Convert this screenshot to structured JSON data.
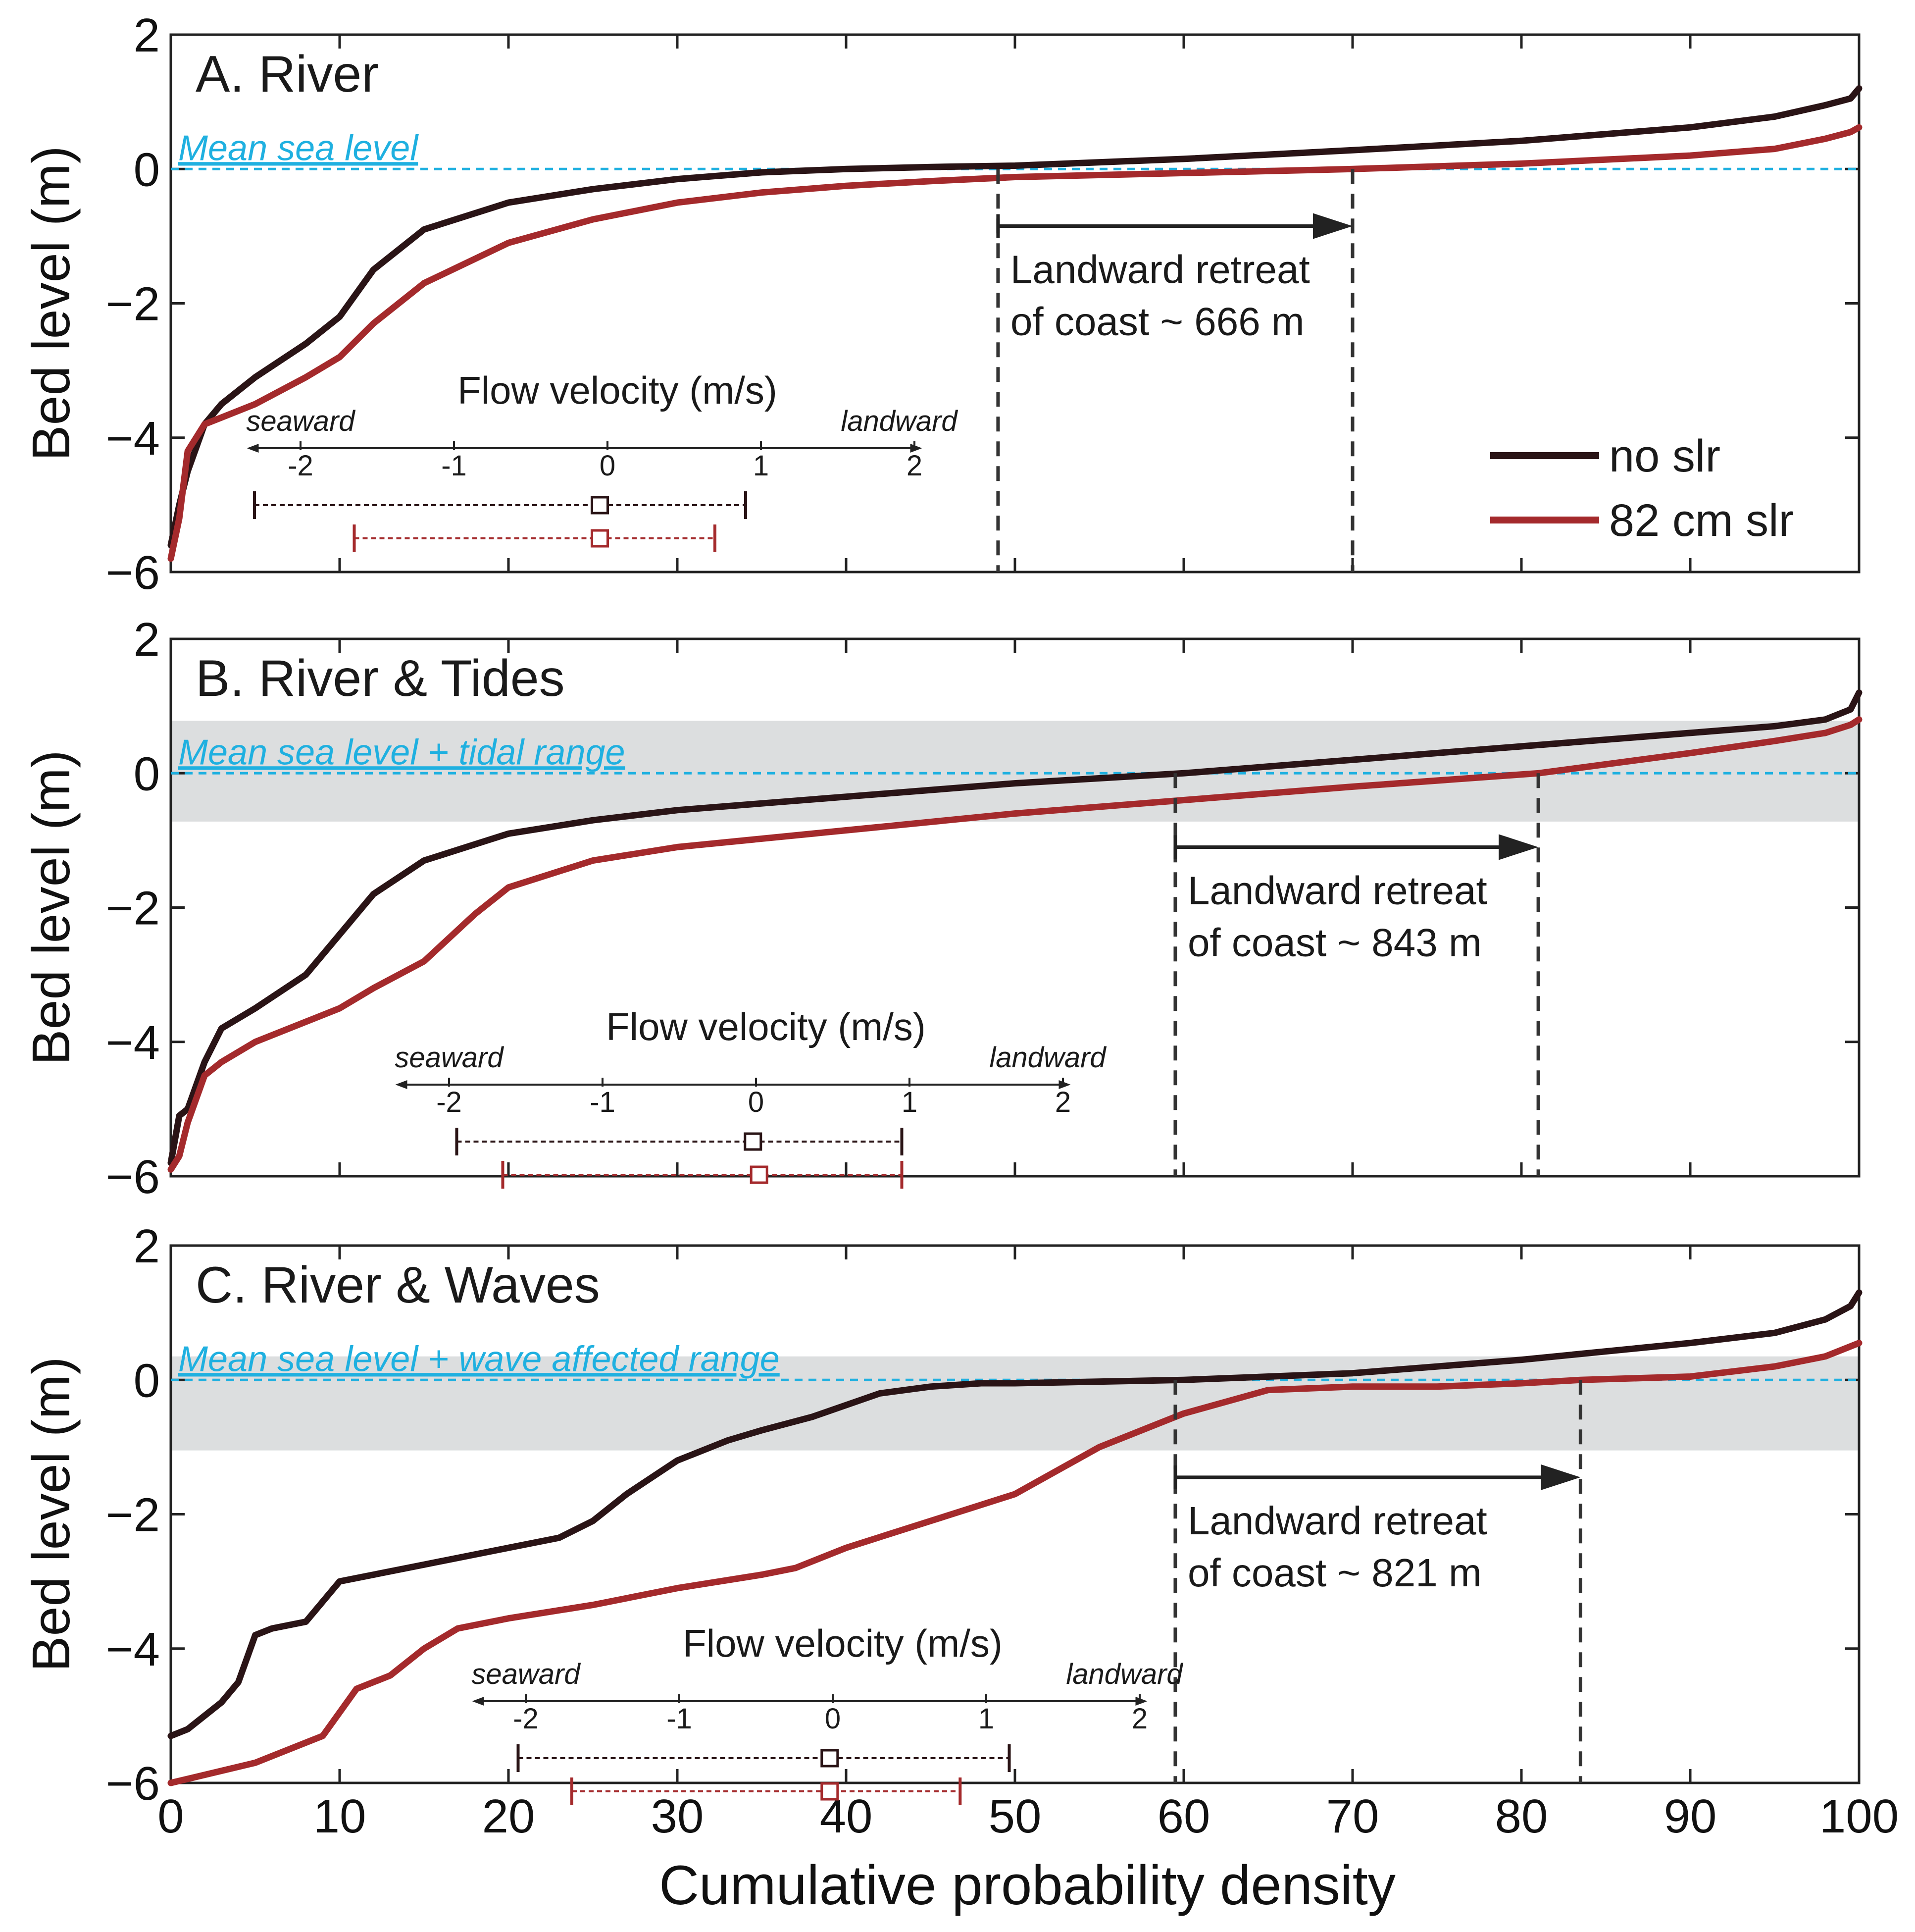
{
  "colors": {
    "no_slr": "#2a1416",
    "slr": "#a42a2c",
    "msl": "#1fb0e0",
    "band": "#dcdedf",
    "dashed": "#333333"
  },
  "chart_data": {
    "type": "line",
    "xlabel": "Cumulative probability density",
    "ylabel": "Bed level (m)",
    "xlim": [
      0,
      100
    ],
    "ylim": [
      -6,
      2
    ],
    "xticks": [
      0,
      10,
      20,
      30,
      40,
      50,
      60,
      70,
      80,
      90,
      100
    ],
    "yticks": [
      2,
      0,
      -2,
      -4,
      -6
    ],
    "ytick_labels": [
      "2",
      "0",
      "−2",
      "−4",
      "−6"
    ],
    "legend": [
      {
        "name": "no slr",
        "color": "#2a1416"
      },
      {
        "name": "82 cm slr",
        "color": "#a42a2c"
      }
    ],
    "panels": [
      {
        "title": "A. River",
        "msl_label": "Mean sea level",
        "band": null,
        "retreat": {
          "x_from": 49,
          "x_to": 70,
          "arrow_y": -0.85,
          "line1": "Landward retreat",
          "line2": "of coast ~ 666 m"
        },
        "series": [
          {
            "name": "no slr",
            "x": [
              0,
              0.5,
              1,
              2,
              3,
              5,
              8,
              10,
              12,
              15,
              20,
              25,
              30,
              35,
              40,
              45,
              50,
              60,
              70,
              80,
              90,
              95,
              98,
              99.5,
              100
            ],
            "y": [
              -5.6,
              -5.0,
              -4.5,
              -3.8,
              -3.5,
              -3.1,
              -2.6,
              -2.2,
              -1.5,
              -0.9,
              -0.5,
              -0.3,
              -0.15,
              -0.05,
              0.0,
              0.03,
              0.05,
              0.15,
              0.28,
              0.42,
              0.62,
              0.78,
              0.95,
              1.05,
              1.2
            ]
          },
          {
            "name": "82 cm slr",
            "x": [
              0,
              0.5,
              1,
              2,
              3,
              5,
              8,
              10,
              12,
              15,
              20,
              25,
              30,
              35,
              40,
              45,
              50,
              60,
              70,
              80,
              90,
              95,
              98,
              99.5,
              100
            ],
            "y": [
              -5.8,
              -5.2,
              -4.2,
              -3.8,
              -3.7,
              -3.5,
              -3.1,
              -2.8,
              -2.3,
              -1.7,
              -1.1,
              -0.75,
              -0.5,
              -0.35,
              -0.25,
              -0.18,
              -0.12,
              -0.06,
              0.0,
              0.08,
              0.2,
              0.3,
              0.45,
              0.55,
              0.62
            ]
          }
        ],
        "velocity": {
          "title": "Flow velocity (m/s)",
          "left_label": "seaward",
          "right_label": "landward",
          "ticks": [
            "-2",
            "-1",
            "0",
            "1",
            "2"
          ],
          "no_slr": {
            "min": -2.3,
            "mean": -0.05,
            "max": 0.9
          },
          "slr": {
            "min": -1.65,
            "mean": -0.05,
            "max": 0.7
          }
        }
      },
      {
        "title": "B. River & Tides",
        "msl_label": "Mean sea level + tidal range",
        "band": [
          -0.72,
          0.78
        ],
        "retreat": {
          "x_from": 59.5,
          "x_to": 81,
          "arrow_y": -1.1,
          "line1": "Landward retreat",
          "line2": "of coast ~ 843 m"
        },
        "series": [
          {
            "name": "no slr",
            "x": [
              0,
              0.5,
              1,
              2,
              3,
              5,
              8,
              10,
              12,
              15,
              20,
              25,
              30,
              40,
              50,
              60,
              70,
              80,
              90,
              95,
              98,
              99.5,
              100
            ],
            "y": [
              -5.8,
              -5.1,
              -5.0,
              -4.3,
              -3.8,
              -3.5,
              -3.0,
              -2.4,
              -1.8,
              -1.3,
              -0.9,
              -0.7,
              -0.55,
              -0.35,
              -0.15,
              0.0,
              0.2,
              0.4,
              0.6,
              0.7,
              0.8,
              0.95,
              1.2
            ]
          },
          {
            "name": "82 cm slr",
            "x": [
              0,
              0.5,
              1,
              2,
              3,
              5,
              8,
              10,
              12,
              15,
              18,
              20,
              25,
              30,
              40,
              50,
              60,
              70,
              81,
              90,
              95,
              98,
              99.5,
              100
            ],
            "y": [
              -5.9,
              -5.7,
              -5.2,
              -4.5,
              -4.3,
              -4.0,
              -3.7,
              -3.5,
              -3.2,
              -2.8,
              -2.1,
              -1.7,
              -1.3,
              -1.1,
              -0.85,
              -0.6,
              -0.4,
              -0.2,
              0.0,
              0.3,
              0.48,
              0.6,
              0.72,
              0.8
            ]
          }
        ],
        "velocity": {
          "title": "Flow velocity (m/s)",
          "left_label": "seaward",
          "right_label": "landward",
          "ticks": [
            "-2",
            "-1",
            "0",
            "1",
            "2"
          ],
          "no_slr": {
            "min": -1.95,
            "mean": -0.02,
            "max": 0.95
          },
          "slr": {
            "min": -1.65,
            "mean": 0.02,
            "max": 0.95
          }
        }
      },
      {
        "title": "C. River & Waves",
        "msl_label": "Mean sea level + wave affected range",
        "band": [
          -1.05,
          0.35
        ],
        "retreat": {
          "x_from": 59.5,
          "x_to": 83.5,
          "arrow_y": -1.45,
          "line1": "Landward retreat",
          "line2": "of coast ~ 821 m"
        },
        "series": [
          {
            "name": "no slr",
            "x": [
              0,
              1,
              2,
              3,
              4,
              5,
              6,
              8,
              9,
              10,
              12,
              15,
              20,
              23,
              25,
              27,
              30,
              33,
              35,
              38,
              42,
              45,
              48,
              50,
              60,
              70,
              80,
              90,
              95,
              98,
              99.5,
              100
            ],
            "y": [
              -5.3,
              -5.2,
              -5.0,
              -4.8,
              -4.5,
              -3.8,
              -3.7,
              -3.6,
              -3.3,
              -3.0,
              -2.9,
              -2.75,
              -2.5,
              -2.35,
              -2.1,
              -1.7,
              -1.2,
              -0.9,
              -0.75,
              -0.55,
              -0.2,
              -0.1,
              -0.05,
              -0.05,
              0.0,
              0.1,
              0.3,
              0.55,
              0.7,
              0.9,
              1.1,
              1.3
            ]
          },
          {
            "name": "82 cm slr",
            "x": [
              0,
              5,
              9,
              11,
              13,
              15,
              17,
              20,
              25,
              30,
              35,
              37,
              40,
              45,
              50,
              55,
              58,
              60,
              65,
              70,
              75,
              80,
              83.5,
              90,
              95,
              98,
              100
            ],
            "y": [
              -6.0,
              -5.7,
              -5.3,
              -4.6,
              -4.4,
              -4.0,
              -3.7,
              -3.55,
              -3.35,
              -3.1,
              -2.9,
              -2.8,
              -2.5,
              -2.1,
              -1.7,
              -1.0,
              -0.7,
              -0.5,
              -0.15,
              -0.1,
              -0.1,
              -0.05,
              0.0,
              0.05,
              0.2,
              0.35,
              0.55
            ]
          }
        ],
        "velocity": {
          "title": "Flow velocity (m/s)",
          "left_label": "seaward",
          "right_label": "landward",
          "ticks": [
            "-2",
            "-1",
            "0",
            "1",
            "2"
          ],
          "no_slr": {
            "min": -2.05,
            "mean": -0.02,
            "max": 1.15
          },
          "slr": {
            "min": -1.7,
            "mean": -0.02,
            "max": 0.83
          }
        }
      }
    ]
  }
}
